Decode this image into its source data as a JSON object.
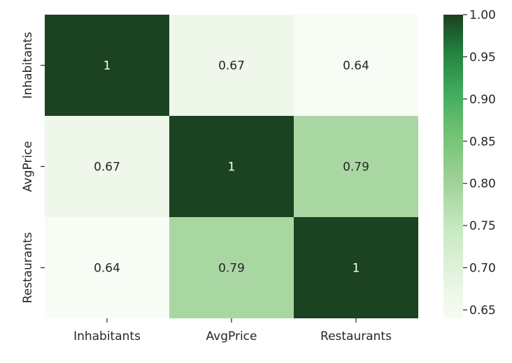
{
  "chart_data": {
    "type": "heatmap",
    "title": "",
    "xlabel": "",
    "ylabel": "",
    "x_categories": [
      "Inhabitants",
      "AvgPrice",
      "Restaurants"
    ],
    "y_categories": [
      "Inhabitants",
      "AvgPrice",
      "Restaurants"
    ],
    "values": [
      [
        1.0,
        0.67,
        0.64
      ],
      [
        0.67,
        1.0,
        0.79
      ],
      [
        0.64,
        0.79,
        1.0
      ]
    ],
    "annotations": [
      [
        "1",
        "0.67",
        "0.64"
      ],
      [
        "0.67",
        "1",
        "0.79"
      ],
      [
        "0.64",
        "0.79",
        "1"
      ]
    ],
    "colorbar": {
      "vmin": 0.64,
      "vmax": 1.0,
      "ticks": [
        "0.65",
        "0.70",
        "0.75",
        "0.80",
        "0.85",
        "0.90",
        "0.95",
        "1.00"
      ],
      "colormap": "Greens",
      "color_low": "#f7fcf5",
      "color_high": "#1b4221"
    },
    "grid": false,
    "legend": "colorbar-right"
  }
}
